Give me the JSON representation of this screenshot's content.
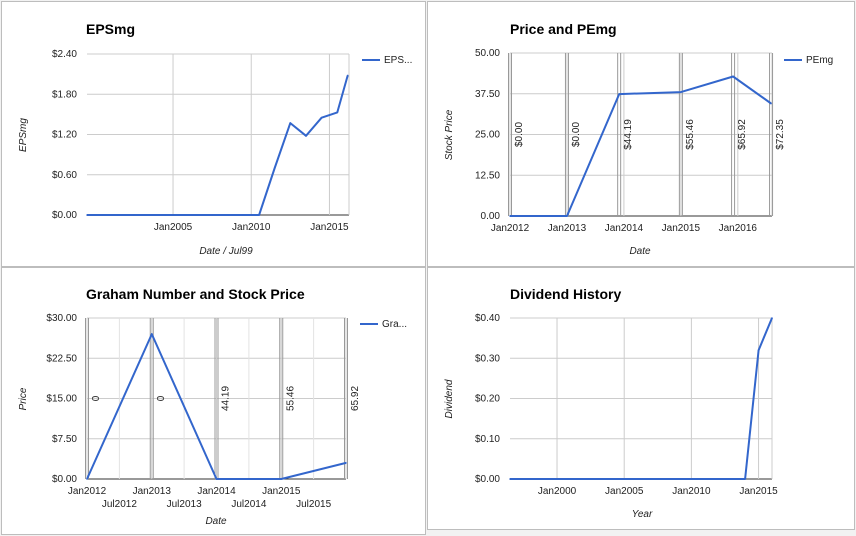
{
  "chart_data": [
    {
      "type": "line",
      "title": "EPSmg",
      "xlabel": "Date / Jul99",
      "ylabel": "EPSmg",
      "legend": [
        "EPS..."
      ],
      "ylim": [
        0,
        2.4
      ],
      "yticks": [
        "$0.00",
        "$0.60",
        "$1.20",
        "$1.80",
        "$2.40"
      ],
      "xticks": [
        "Jan2005",
        "Jan2010",
        "Jan2015"
      ],
      "series": [
        {
          "name": "EPS...",
          "x": [
            "1999-07",
            "2000-07",
            "2001-07",
            "2002-07",
            "2003-07",
            "2004-07",
            "2005-07",
            "2006-07",
            "2007-07",
            "2008-07",
            "2009-07",
            "2010-07",
            "2011-07",
            "2012-07",
            "2013-07",
            "2014-07",
            "2015-07",
            "2016-03"
          ],
          "values": [
            0,
            0,
            0,
            0,
            0,
            0,
            0,
            0,
            0,
            0,
            0,
            0,
            0.7,
            1.37,
            1.18,
            1.45,
            1.53,
            2.08
          ]
        }
      ],
      "color": "#3366cc"
    },
    {
      "type": "line",
      "title": "Price and PEmg",
      "xlabel": "Date",
      "ylabel": "Stock Price",
      "legend": [
        "PEmg"
      ],
      "ylim": [
        0,
        50
      ],
      "yticks": [
        "0.00",
        "12.50",
        "25.00",
        "37.50",
        "50.00"
      ],
      "xticks": [
        "Jan2012",
        "Jan2013",
        "Jan2014",
        "Jan2015",
        "Jan2016"
      ],
      "series": [
        {
          "name": "PEmg",
          "x": [
            "2012-01",
            "2013-01",
            "2013-12",
            "2015-01",
            "2015-12",
            "2016-08"
          ],
          "values": [
            0,
            0,
            37.4,
            38,
            42.8,
            34.5
          ]
        }
      ],
      "annotations": [
        {
          "x": "2012-01",
          "label": "$0.00"
        },
        {
          "x": "2013-01",
          "label": "$0.00"
        },
        {
          "x": "2013-12",
          "label": "$44.19"
        },
        {
          "x": "2015-01",
          "label": "$55.46"
        },
        {
          "x": "2015-12",
          "label": "$65.92"
        },
        {
          "x": "2016-08",
          "label": "$72.35"
        }
      ],
      "color": "#3366cc"
    },
    {
      "type": "line",
      "title": "Graham Number and Stock Price",
      "xlabel": "Date",
      "ylabel": "Price",
      "legend": [
        "Gra..."
      ],
      "ylim": [
        0,
        30
      ],
      "yticks": [
        "$0.00",
        "$7.50",
        "$15.00",
        "$22.50",
        "$30.00"
      ],
      "xticks_major": [
        "Jan2012",
        "Jan2013",
        "Jan2014",
        "Jan2015"
      ],
      "xticks_minor": [
        "Jul2012",
        "Jul2013",
        "Jul2014",
        "Jul2015"
      ],
      "series": [
        {
          "name": "Gra...",
          "x": [
            "2012-01",
            "2013-01",
            "2014-01",
            "2015-01",
            "2016-01"
          ],
          "values": [
            0,
            27,
            0,
            0,
            3
          ]
        }
      ],
      "annotations": [
        {
          "x": "2012-01",
          "label": "0"
        },
        {
          "x": "2013-01",
          "label": "0"
        },
        {
          "x": "2014-01",
          "label": "44.19"
        },
        {
          "x": "2015-01",
          "label": "55.46"
        },
        {
          "x": "2016-01",
          "label": "65.92"
        }
      ],
      "color": "#3366cc"
    },
    {
      "type": "line",
      "title": "Dividend History",
      "xlabel": "Year",
      "ylabel": "Dividend",
      "ylim": [
        0,
        0.4
      ],
      "yticks": [
        "$0.00",
        "$0.10",
        "$0.20",
        "$0.30",
        "$0.40"
      ],
      "xticks": [
        "Jan2000",
        "Jan2005",
        "Jan2010",
        "Jan2015"
      ],
      "series": [
        {
          "name": "Dividend",
          "x": [
            "1996-07",
            "2014-01",
            "2015-01",
            "2016-01"
          ],
          "values": [
            0,
            0,
            0.32,
            0.4
          ]
        }
      ],
      "color": "#3366cc"
    }
  ]
}
